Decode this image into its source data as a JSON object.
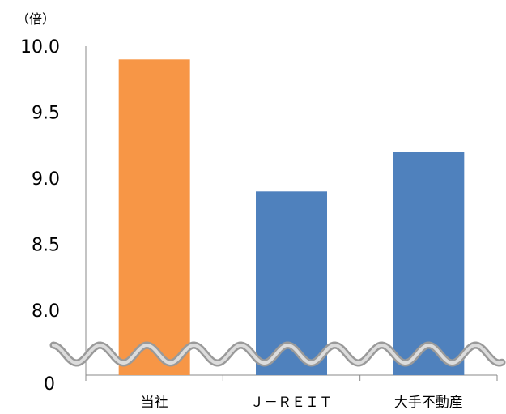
{
  "chart_data": {
    "type": "bar",
    "title": "",
    "xlabel": "",
    "ylabel": "",
    "unit_label": "（倍）",
    "categories": [
      "当社",
      "Ｊ－ＲＥＩＴ",
      "大手不動産"
    ],
    "values": [
      9.9,
      8.9,
      9.2
    ],
    "bar_colors": [
      "#F79646",
      "#4F81BD",
      "#4F81BD"
    ],
    "y_ticks": [
      "10.0",
      "9.5",
      "9.0",
      "8.5",
      "8.0"
    ],
    "y_tick_values": [
      10.0,
      9.5,
      9.0,
      8.5,
      8.0
    ],
    "y_baseline_label": "0",
    "ylim": [
      7.5,
      10.0
    ],
    "axis_break": true,
    "grid": false,
    "legend": "none"
  }
}
